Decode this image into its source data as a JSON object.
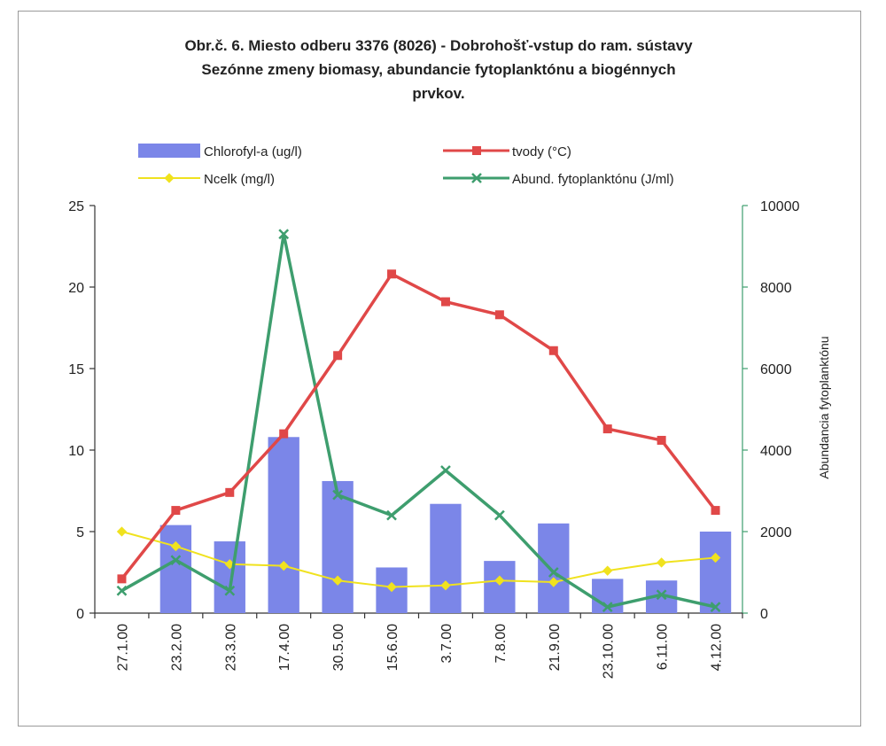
{
  "chart_data": {
    "type": "bar+line",
    "title_lines": [
      "Obr.č. 6. Miesto odberu 3376 (8026) - Dobrohošť-vstup do ram. sústavy",
      "Sezónne zmeny biomasy, abundancie fytoplanktónu a biogénnych",
      "prvkov."
    ],
    "categories": [
      "27.1.00",
      "23.2.00",
      "23.3.00",
      "17.4.00",
      "30.5.00",
      "15.6.00",
      "3.7.00",
      "7.8.00",
      "21.9.00",
      "23.10.00",
      "6.11.00",
      "4.12.00"
    ],
    "y_left": {
      "range": [
        0,
        25
      ],
      "ticks": [
        "0",
        "5",
        "10",
        "15",
        "20",
        "25"
      ]
    },
    "y_right": {
      "range": [
        0,
        10000
      ],
      "ticks": [
        "0",
        "2000",
        "4000",
        "6000",
        "8000",
        "10000"
      ],
      "label": "Abundancia fytoplanktónu"
    },
    "series": [
      {
        "name": "Chlorofyl-a (ug/l)",
        "kind": "bar",
        "axis": "left",
        "color": "#7b86e8",
        "values": [
          0,
          5.4,
          4.4,
          10.8,
          8.1,
          2.8,
          6.7,
          3.2,
          5.5,
          2.1,
          2.0,
          5.0
        ]
      },
      {
        "name": "tvody (°C)",
        "kind": "line",
        "axis": "left",
        "color": "#e04848",
        "marker": "square",
        "values": [
          2.1,
          6.3,
          7.4,
          11.0,
          15.8,
          20.8,
          19.1,
          18.3,
          16.1,
          11.3,
          10.6,
          6.3
        ]
      },
      {
        "name": "Ncelk (mg/l)",
        "kind": "line",
        "axis": "left",
        "color": "#f0e21e",
        "marker": "diamond",
        "values": [
          5.0,
          4.1,
          3.0,
          2.9,
          2.0,
          1.6,
          1.7,
          2.0,
          1.9,
          2.6,
          3.1,
          3.4
        ]
      },
      {
        "name": "Abund. fytoplanktónu (J/ml)",
        "kind": "line",
        "axis": "right",
        "color": "#3e9e6e",
        "marker": "x",
        "values": [
          550,
          1300,
          550,
          9300,
          2900,
          2400,
          3500,
          2400,
          1000,
          150,
          450,
          150
        ]
      }
    ],
    "grid": false,
    "legend_position": "top"
  }
}
